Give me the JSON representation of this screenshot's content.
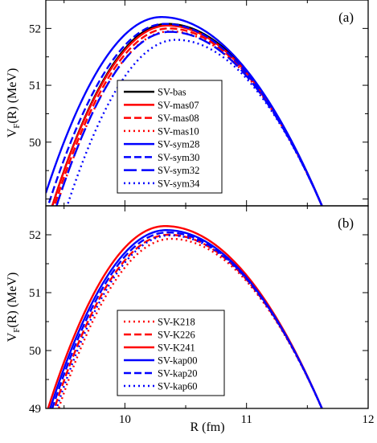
{
  "chart_data": [
    {
      "type": "line",
      "panel_tag": "(a)",
      "xlabel": "R (fm)",
      "ylabel_main": "V",
      "ylabel_sub": "F",
      "ylabel_rest": "(R) (MeV)",
      "xlim": [
        9.35,
        12
      ],
      "ylim": [
        48.88,
        52.5
      ],
      "xticks": [
        10,
        11,
        12
      ],
      "xtick_labels": [
        "10",
        "11",
        "12"
      ],
      "yticks": [
        50,
        51,
        52
      ],
      "ytick_labels": [
        "50",
        "51",
        "52"
      ],
      "legend_position": "center-left",
      "curve_end_x": 11.62,
      "series": [
        {
          "name": "SV-bas",
          "color": "#000000",
          "dash": "solid",
          "peak_x": 10.35,
          "peak_y": 52.08
        },
        {
          "name": "SV-mas07",
          "color": "#ff0000",
          "dash": "solid",
          "peak_x": 10.35,
          "peak_y": 52.05
        },
        {
          "name": "SV-mas08",
          "color": "#ff0000",
          "dash": "dashed",
          "peak_x": 10.36,
          "peak_y": 52.0
        },
        {
          "name": "SV-mas10",
          "color": "#ff0000",
          "dash": "dotted",
          "peak_x": 10.37,
          "peak_y": 51.95
        },
        {
          "name": "SV-sym28",
          "color": "#0000ff",
          "dash": "solid",
          "peak_x": 10.3,
          "peak_y": 52.2
        },
        {
          "name": "SV-sym30",
          "color": "#0000ff",
          "dash": "dashed",
          "peak_x": 10.33,
          "peak_y": 52.08
        },
        {
          "name": "SV-sym32",
          "color": "#0000ff",
          "dash": "long",
          "peak_x": 10.37,
          "peak_y": 51.94
        },
        {
          "name": "SV-sym34",
          "color": "#0000ff",
          "dash": "dotted",
          "peak_x": 10.42,
          "peak_y": 51.8
        }
      ]
    },
    {
      "type": "line",
      "panel_tag": "(b)",
      "xlabel": "R (fm)",
      "ylabel_main": "V",
      "ylabel_sub": "F",
      "ylabel_rest": "(R) (MeV)",
      "xlim": [
        9.35,
        12
      ],
      "ylim": [
        49,
        52.5
      ],
      "xticks": [
        10,
        11,
        12
      ],
      "xtick_labels": [
        "10",
        "11",
        "12"
      ],
      "yticks": [
        49,
        50,
        51,
        52
      ],
      "ytick_labels": [
        "49",
        "50",
        "51",
        "52"
      ],
      "legend_position": "bottom-left",
      "curve_end_x": 11.62,
      "series": [
        {
          "name": "SV-K218",
          "color": "#ff0000",
          "dash": "dotted",
          "peak_x": 10.38,
          "peak_y": 51.93
        },
        {
          "name": "SV-K226",
          "color": "#ff0000",
          "dash": "dashed",
          "peak_x": 10.36,
          "peak_y": 52.0
        },
        {
          "name": "SV-K241",
          "color": "#ff0000",
          "dash": "solid",
          "peak_x": 10.33,
          "peak_y": 52.15
        },
        {
          "name": "SV-kap00",
          "color": "#0000ff",
          "dash": "solid",
          "peak_x": 10.34,
          "peak_y": 52.08
        },
        {
          "name": "SV-kap20",
          "color": "#0000ff",
          "dash": "dashed",
          "peak_x": 10.35,
          "peak_y": 52.04
        },
        {
          "name": "SV-kap60",
          "color": "#0000ff",
          "dash": "dotted",
          "peak_x": 10.37,
          "peak_y": 51.99
        }
      ]
    }
  ]
}
